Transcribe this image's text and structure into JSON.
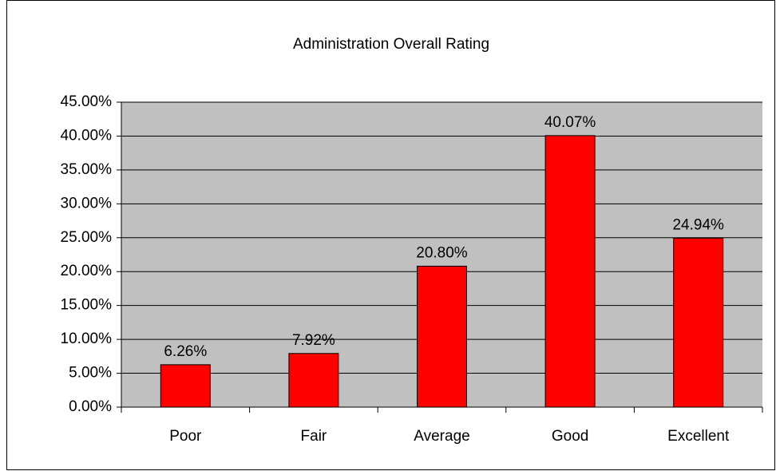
{
  "chart_data": {
    "type": "bar",
    "title": "Administration Overall Rating",
    "categories": [
      "Poor",
      "Fair",
      "Average",
      "Good",
      "Excellent"
    ],
    "values": [
      6.26,
      7.92,
      20.8,
      40.07,
      24.94
    ],
    "value_labels": [
      "6.26%",
      "7.92%",
      "20.80%",
      "40.07%",
      "24.94%"
    ],
    "color": "#ff0000",
    "ylim": [
      0,
      45
    ],
    "yticks": [
      {
        "value": 0,
        "label": "0.00%"
      },
      {
        "value": 5,
        "label": "5.00%"
      },
      {
        "value": 10,
        "label": "10.00%"
      },
      {
        "value": 15,
        "label": "15.00%"
      },
      {
        "value": 20,
        "label": "20.00%"
      },
      {
        "value": 25,
        "label": "25.00%"
      },
      {
        "value": 30,
        "label": "30.00%"
      },
      {
        "value": 35,
        "label": "35.00%"
      },
      {
        "value": 40,
        "label": "40.00%"
      },
      {
        "value": 45,
        "label": "45.00%"
      }
    ],
    "grid": true
  }
}
